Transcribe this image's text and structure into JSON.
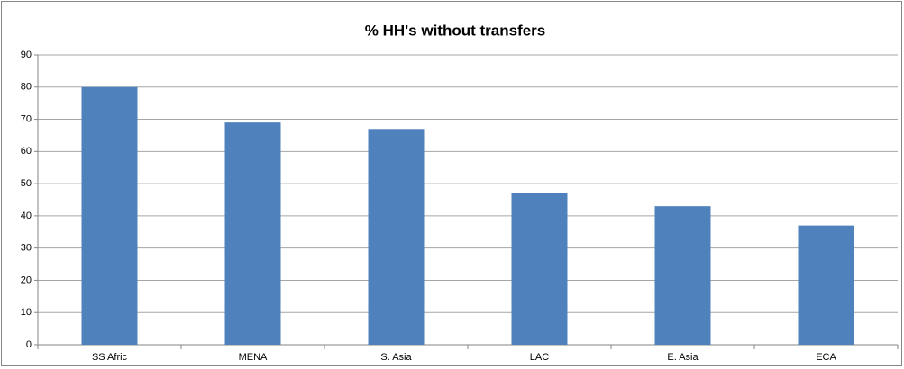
{
  "chart_data": {
    "type": "bar",
    "title": "% HH's without transfers",
    "categories": [
      "SS Afric",
      "MENA",
      "S. Asia",
      "LAC",
      "E. Asia",
      "ECA"
    ],
    "values": [
      80,
      69,
      67,
      47,
      43,
      37
    ],
    "color": "#4f81bd",
    "ylim": [
      0,
      90
    ],
    "yticks": [
      0,
      10,
      20,
      30,
      40,
      50,
      60,
      70,
      80,
      90
    ],
    "grid": true
  }
}
